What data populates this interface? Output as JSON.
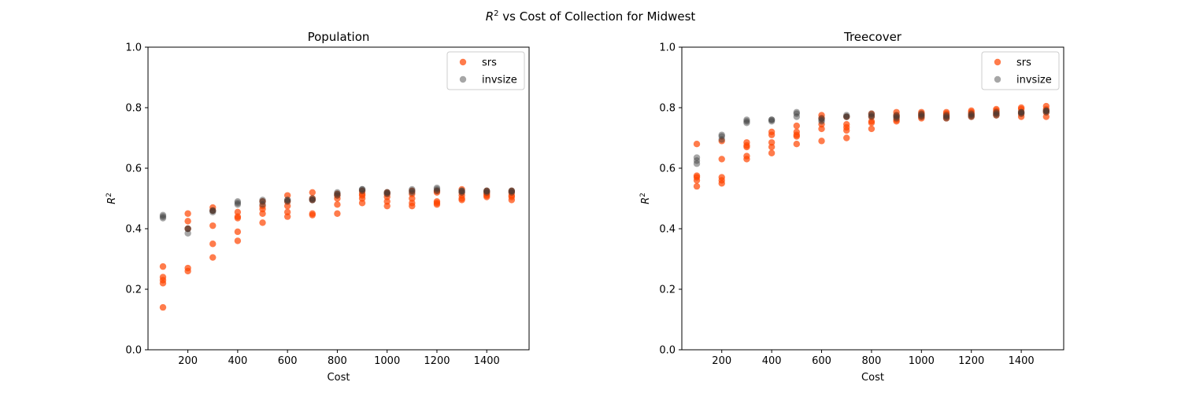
{
  "figure": {
    "title_prefix": "R",
    "title_sup": "2",
    "title_rest": " vs Cost of Collection for Midwest"
  },
  "chart_data": [
    {
      "type": "scatter",
      "title": "Population",
      "xlabel": "Cost",
      "ylabel_base": "R",
      "ylabel_sup": "2",
      "xlim": [
        40,
        1570
      ],
      "ylim": [
        0,
        1.0
      ],
      "xticks": [
        200,
        400,
        600,
        800,
        1000,
        1200,
        1400
      ],
      "yticks": [
        0.0,
        0.2,
        0.4,
        0.6,
        0.8,
        1.0
      ],
      "grid": false,
      "legend_position": "top-right",
      "series": [
        {
          "name": "srs",
          "color": "#ff4500",
          "opacity": 0.7,
          "points": [
            [
              100,
              0.14
            ],
            [
              100,
              0.22
            ],
            [
              100,
              0.23
            ],
            [
              100,
              0.24
            ],
            [
              100,
              0.275
            ],
            [
              200,
              0.26
            ],
            [
              200,
              0.27
            ],
            [
              200,
              0.4
            ],
            [
              200,
              0.425
            ],
            [
              200,
              0.45
            ],
            [
              300,
              0.305
            ],
            [
              300,
              0.35
            ],
            [
              300,
              0.41
            ],
            [
              300,
              0.46
            ],
            [
              300,
              0.47
            ],
            [
              400,
              0.36
            ],
            [
              400,
              0.39
            ],
            [
              400,
              0.435
            ],
            [
              400,
              0.44
            ],
            [
              400,
              0.455
            ],
            [
              500,
              0.42
            ],
            [
              500,
              0.45
            ],
            [
              500,
              0.465
            ],
            [
              500,
              0.475
            ],
            [
              500,
              0.49
            ],
            [
              600,
              0.44
            ],
            [
              600,
              0.455
            ],
            [
              600,
              0.475
            ],
            [
              600,
              0.49
            ],
            [
              600,
              0.51
            ],
            [
              700,
              0.445
            ],
            [
              700,
              0.45
            ],
            [
              700,
              0.495
            ],
            [
              700,
              0.5
            ],
            [
              700,
              0.52
            ],
            [
              800,
              0.45
            ],
            [
              800,
              0.48
            ],
            [
              800,
              0.5
            ],
            [
              800,
              0.51
            ],
            [
              800,
              0.515
            ],
            [
              900,
              0.485
            ],
            [
              900,
              0.5
            ],
            [
              900,
              0.51
            ],
            [
              900,
              0.515
            ],
            [
              900,
              0.525
            ],
            [
              1000,
              0.475
            ],
            [
              1000,
              0.49
            ],
            [
              1000,
              0.505
            ],
            [
              1000,
              0.515
            ],
            [
              1000,
              0.52
            ],
            [
              1100,
              0.475
            ],
            [
              1100,
              0.485
            ],
            [
              1100,
              0.5
            ],
            [
              1100,
              0.515
            ],
            [
              1100,
              0.525
            ],
            [
              1200,
              0.48
            ],
            [
              1200,
              0.485
            ],
            [
              1200,
              0.49
            ],
            [
              1200,
              0.52
            ],
            [
              1200,
              0.525
            ],
            [
              1300,
              0.495
            ],
            [
              1300,
              0.5
            ],
            [
              1300,
              0.51
            ],
            [
              1300,
              0.52
            ],
            [
              1300,
              0.53
            ],
            [
              1400,
              0.505
            ],
            [
              1400,
              0.51
            ],
            [
              1400,
              0.515
            ],
            [
              1400,
              0.52
            ],
            [
              1400,
              0.525
            ],
            [
              1500,
              0.495
            ],
            [
              1500,
              0.505
            ],
            [
              1500,
              0.51
            ],
            [
              1500,
              0.52
            ],
            [
              1500,
              0.525
            ]
          ]
        },
        {
          "name": "invsize",
          "color": "#3a3a3a",
          "opacity": 0.45,
          "points": [
            [
              100,
              0.435
            ],
            [
              100,
              0.44
            ],
            [
              100,
              0.445
            ],
            [
              200,
              0.385
            ],
            [
              200,
              0.4
            ],
            [
              200,
              0.4
            ],
            [
              300,
              0.455
            ],
            [
              300,
              0.46
            ],
            [
              300,
              0.46
            ],
            [
              400,
              0.48
            ],
            [
              400,
              0.485
            ],
            [
              400,
              0.49
            ],
            [
              500,
              0.48
            ],
            [
              500,
              0.49
            ],
            [
              500,
              0.495
            ],
            [
              600,
              0.49
            ],
            [
              600,
              0.495
            ],
            [
              600,
              0.495
            ],
            [
              700,
              0.495
            ],
            [
              700,
              0.495
            ],
            [
              700,
              0.5
            ],
            [
              800,
              0.51
            ],
            [
              800,
              0.515
            ],
            [
              800,
              0.52
            ],
            [
              900,
              0.525
            ],
            [
              900,
              0.53
            ],
            [
              900,
              0.53
            ],
            [
              1000,
              0.515
            ],
            [
              1000,
              0.52
            ],
            [
              1000,
              0.52
            ],
            [
              1100,
              0.52
            ],
            [
              1100,
              0.525
            ],
            [
              1100,
              0.53
            ],
            [
              1200,
              0.525
            ],
            [
              1200,
              0.53
            ],
            [
              1200,
              0.535
            ],
            [
              1300,
              0.52
            ],
            [
              1300,
              0.525
            ],
            [
              1300,
              0.525
            ],
            [
              1400,
              0.52
            ],
            [
              1400,
              0.525
            ],
            [
              1400,
              0.525
            ],
            [
              1500,
              0.52
            ],
            [
              1500,
              0.525
            ],
            [
              1500,
              0.525
            ]
          ]
        }
      ]
    },
    {
      "type": "scatter",
      "title": "Treecover",
      "xlabel": "Cost",
      "ylabel_base": "R",
      "ylabel_sup": "2",
      "xlim": [
        40,
        1570
      ],
      "ylim": [
        0,
        1.0
      ],
      "xticks": [
        200,
        400,
        600,
        800,
        1000,
        1200,
        1400
      ],
      "yticks": [
        0.0,
        0.2,
        0.4,
        0.6,
        0.8,
        1.0
      ],
      "grid": false,
      "legend_position": "top-right",
      "series": [
        {
          "name": "srs",
          "color": "#ff4500",
          "opacity": 0.7,
          "points": [
            [
              100,
              0.54
            ],
            [
              100,
              0.56
            ],
            [
              100,
              0.57
            ],
            [
              100,
              0.575
            ],
            [
              100,
              0.68
            ],
            [
              200,
              0.55
            ],
            [
              200,
              0.56
            ],
            [
              200,
              0.57
            ],
            [
              200,
              0.63
            ],
            [
              200,
              0.69
            ],
            [
              300,
              0.63
            ],
            [
              300,
              0.64
            ],
            [
              300,
              0.67
            ],
            [
              300,
              0.675
            ],
            [
              300,
              0.685
            ],
            [
              400,
              0.65
            ],
            [
              400,
              0.67
            ],
            [
              400,
              0.685
            ],
            [
              400,
              0.71
            ],
            [
              400,
              0.72
            ],
            [
              500,
              0.68
            ],
            [
              500,
              0.705
            ],
            [
              500,
              0.71
            ],
            [
              500,
              0.72
            ],
            [
              500,
              0.74
            ],
            [
              600,
              0.69
            ],
            [
              600,
              0.73
            ],
            [
              600,
              0.745
            ],
            [
              600,
              0.765
            ],
            [
              600,
              0.775
            ],
            [
              700,
              0.7
            ],
            [
              700,
              0.725
            ],
            [
              700,
              0.735
            ],
            [
              700,
              0.745
            ],
            [
              700,
              0.77
            ],
            [
              800,
              0.73
            ],
            [
              800,
              0.75
            ],
            [
              800,
              0.755
            ],
            [
              800,
              0.77
            ],
            [
              800,
              0.78
            ],
            [
              900,
              0.755
            ],
            [
              900,
              0.76
            ],
            [
              900,
              0.77
            ],
            [
              900,
              0.775
            ],
            [
              900,
              0.785
            ],
            [
              1000,
              0.765
            ],
            [
              1000,
              0.77
            ],
            [
              1000,
              0.775
            ],
            [
              1000,
              0.78
            ],
            [
              1000,
              0.785
            ],
            [
              1100,
              0.765
            ],
            [
              1100,
              0.77
            ],
            [
              1100,
              0.775
            ],
            [
              1100,
              0.78
            ],
            [
              1100,
              0.785
            ],
            [
              1200,
              0.77
            ],
            [
              1200,
              0.775
            ],
            [
              1200,
              0.78
            ],
            [
              1200,
              0.785
            ],
            [
              1200,
              0.79
            ],
            [
              1300,
              0.775
            ],
            [
              1300,
              0.78
            ],
            [
              1300,
              0.785
            ],
            [
              1300,
              0.79
            ],
            [
              1300,
              0.795
            ],
            [
              1400,
              0.77
            ],
            [
              1400,
              0.78
            ],
            [
              1400,
              0.785
            ],
            [
              1400,
              0.795
            ],
            [
              1400,
              0.8
            ],
            [
              1500,
              0.77
            ],
            [
              1500,
              0.785
            ],
            [
              1500,
              0.79
            ],
            [
              1500,
              0.795
            ],
            [
              1500,
              0.805
            ]
          ]
        },
        {
          "name": "invsize",
          "color": "#3a3a3a",
          "opacity": 0.45,
          "points": [
            [
              100,
              0.615
            ],
            [
              100,
              0.625
            ],
            [
              100,
              0.635
            ],
            [
              200,
              0.695
            ],
            [
              200,
              0.705
            ],
            [
              200,
              0.71
            ],
            [
              300,
              0.75
            ],
            [
              300,
              0.755
            ],
            [
              300,
              0.76
            ],
            [
              400,
              0.755
            ],
            [
              400,
              0.76
            ],
            [
              400,
              0.76
            ],
            [
              500,
              0.77
            ],
            [
              500,
              0.78
            ],
            [
              500,
              0.785
            ],
            [
              600,
              0.755
            ],
            [
              600,
              0.76
            ],
            [
              600,
              0.765
            ],
            [
              700,
              0.77
            ],
            [
              700,
              0.77
            ],
            [
              700,
              0.775
            ],
            [
              800,
              0.77
            ],
            [
              800,
              0.775
            ],
            [
              800,
              0.78
            ],
            [
              900,
              0.765
            ],
            [
              900,
              0.77
            ],
            [
              900,
              0.775
            ],
            [
              1000,
              0.77
            ],
            [
              1000,
              0.775
            ],
            [
              1000,
              0.78
            ],
            [
              1100,
              0.765
            ],
            [
              1100,
              0.77
            ],
            [
              1100,
              0.775
            ],
            [
              1200,
              0.77
            ],
            [
              1200,
              0.775
            ],
            [
              1200,
              0.78
            ],
            [
              1300,
              0.775
            ],
            [
              1300,
              0.78
            ],
            [
              1300,
              0.785
            ],
            [
              1400,
              0.78
            ],
            [
              1400,
              0.785
            ],
            [
              1400,
              0.785
            ],
            [
              1500,
              0.785
            ],
            [
              1500,
              0.79
            ],
            [
              1500,
              0.79
            ]
          ]
        }
      ]
    }
  ]
}
